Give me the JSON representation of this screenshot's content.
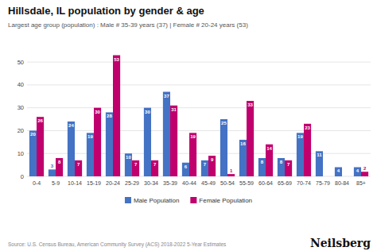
{
  "chart_data": {
    "type": "bar",
    "title": "Hillsdale, IL population by gender & age",
    "subtitle": "Largest age group (population) : Male # 35-39 years (37) | Female # 20-24 years (53)",
    "annotations": [
      "Source: U.S. Census Bureau, American Community Survey (ACS) 2018-2022 5-Year Estimates",
      "Neilsberg"
    ],
    "categories": [
      "0-4",
      "5-9",
      "10-14",
      "15-19",
      "20-24",
      "25-29",
      "30-34",
      "35-39",
      "40-44",
      "45-49",
      "50-54",
      "55-59",
      "60-64",
      "65-69",
      "70-74",
      "75-79",
      "80-84",
      "85+"
    ],
    "series": [
      {
        "name": "Male Population",
        "color": "#4472C4",
        "values": [
          20,
          3,
          24,
          19,
          28,
          10,
          30,
          37,
          6,
          7,
          25,
          16,
          8,
          8,
          19,
          11,
          4,
          4
        ]
      },
      {
        "name": "Female Population",
        "color": "#C0006D",
        "values": [
          26,
          8,
          7,
          30,
          53,
          7,
          7,
          31,
          19,
          9,
          1,
          33,
          14,
          7,
          23,
          0,
          0,
          2
        ]
      }
    ],
    "ylim": [
      0,
      57
    ],
    "yticks": [
      0,
      10,
      20,
      30,
      40,
      50
    ],
    "grid": true,
    "legend": "bottom",
    "data_labels": true
  }
}
